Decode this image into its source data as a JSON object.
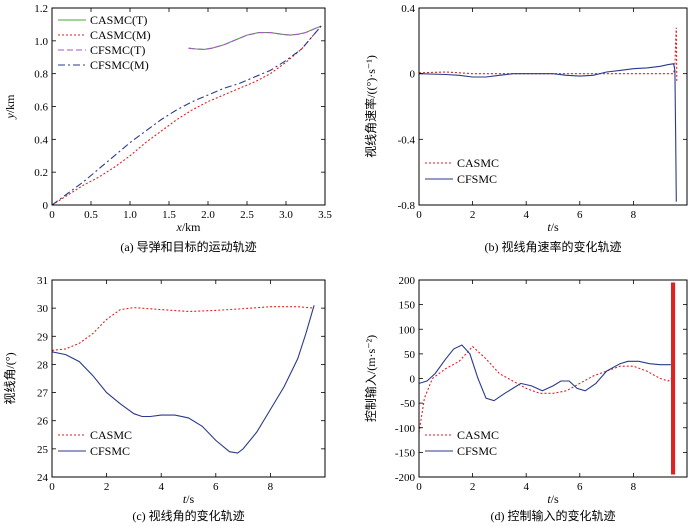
{
  "chart_data": [
    {
      "id": "a",
      "type": "line",
      "caption": "(a) 导弹和目标的运动轨迹",
      "xlabel": "x/km",
      "ylabel": "y/km",
      "xlim": [
        0,
        3.5
      ],
      "ylim": [
        0,
        1.2
      ],
      "xticks": [
        0,
        0.5,
        1.0,
        1.5,
        2.0,
        2.5,
        3.0,
        3.5
      ],
      "xtick_labels": [
        "0",
        "0.5",
        "1.0",
        "1.5",
        "2.0",
        "2.5",
        "3.0",
        "3.5"
      ],
      "yticks": [
        0,
        0.2,
        0.4,
        0.6,
        0.8,
        1.0,
        1.2
      ],
      "ytick_labels": [
        "0",
        "0.2",
        "0.4",
        "0.6",
        "0.8",
        "1.0",
        "1.2"
      ],
      "legend_position": "top-left",
      "series": [
        {
          "name": "CASMC(T)",
          "color": "#44aa33",
          "dash": "solid",
          "x": [
            1.75,
            1.85,
            1.95,
            2.05,
            2.2,
            2.35,
            2.5,
            2.65,
            2.8,
            2.95,
            3.05,
            3.15,
            3.25,
            3.35,
            3.45
          ],
          "y": [
            0.955,
            0.95,
            0.948,
            0.955,
            0.975,
            1.005,
            1.035,
            1.05,
            1.05,
            1.04,
            1.035,
            1.04,
            1.05,
            1.07,
            1.09
          ]
        },
        {
          "name": "CASMC(M)",
          "color": "#dd2222",
          "dash": "dotted",
          "x": [
            0.0,
            0.2,
            0.4,
            0.6,
            0.8,
            1.0,
            1.2,
            1.4,
            1.6,
            1.8,
            2.0,
            2.2,
            2.4,
            2.6,
            2.8,
            3.0,
            3.2,
            3.45
          ],
          "y": [
            0.0,
            0.06,
            0.12,
            0.17,
            0.23,
            0.3,
            0.38,
            0.45,
            0.52,
            0.58,
            0.63,
            0.67,
            0.71,
            0.75,
            0.8,
            0.87,
            0.95,
            1.09
          ]
        },
        {
          "name": "CFSMC(T)",
          "color": "#aa55cc",
          "dash": "dashed",
          "x": [
            1.75,
            1.85,
            1.95,
            2.05,
            2.2,
            2.35,
            2.5,
            2.65,
            2.8,
            2.95,
            3.05,
            3.15,
            3.25,
            3.35,
            3.45
          ],
          "y": [
            0.955,
            0.95,
            0.948,
            0.955,
            0.975,
            1.005,
            1.035,
            1.05,
            1.05,
            1.04,
            1.035,
            1.04,
            1.05,
            1.07,
            1.09
          ]
        },
        {
          "name": "CFSMC(M)",
          "color": "#2a3a8a",
          "dash": "dashdot",
          "x": [
            0.0,
            0.2,
            0.4,
            0.6,
            0.8,
            1.0,
            1.2,
            1.4,
            1.6,
            1.8,
            2.0,
            2.2,
            2.4,
            2.6,
            2.8,
            3.0,
            3.2,
            3.45
          ],
          "y": [
            0.0,
            0.07,
            0.14,
            0.22,
            0.3,
            0.38,
            0.45,
            0.52,
            0.58,
            0.63,
            0.67,
            0.71,
            0.74,
            0.78,
            0.82,
            0.88,
            0.95,
            1.09
          ]
        }
      ]
    },
    {
      "id": "b",
      "type": "line",
      "caption": "(b) 视线角速率的变化轨迹",
      "xlabel": "t/s",
      "ylabel": "视线角速率/((°)·s⁻¹)",
      "xlim": [
        0,
        10
      ],
      "ylim": [
        -0.8,
        0.4
      ],
      "xticks": [
        0,
        2,
        4,
        6,
        8
      ],
      "xtick_labels": [
        "0",
        "2",
        "4",
        "6",
        "8"
      ],
      "yticks": [
        -0.8,
        -0.4,
        0,
        0.4
      ],
      "ytick_labels": [
        "-0.8",
        "-0.4",
        "0",
        "0.4"
      ],
      "legend_position": "bottom-left",
      "series": [
        {
          "name": "CASMC",
          "color": "#dd2222",
          "dash": "dotted",
          "x": [
            0,
            1,
            2,
            3,
            4,
            5,
            6,
            7,
            8,
            9,
            9.5,
            9.55,
            9.58,
            9.6,
            9.62
          ],
          "y": [
            0.005,
            0.01,
            0.0,
            0.0,
            0.0,
            0.0,
            0.0,
            0.0,
            0.0,
            0.0,
            0.0,
            0.05,
            0.2,
            0.28,
            -0.05
          ]
        },
        {
          "name": "CFSMC",
          "color": "#2a3a8a",
          "dash": "solid",
          "x": [
            0,
            1,
            1.5,
            2,
            2.5,
            3,
            3.5,
            4,
            5,
            5.5,
            6,
            6.5,
            7,
            7.5,
            8,
            8.5,
            9,
            9.3,
            9.5,
            9.55,
            9.58,
            9.6
          ],
          "y": [
            0.0,
            -0.005,
            -0.01,
            -0.02,
            -0.02,
            -0.01,
            0.0,
            0.0,
            0.0,
            -0.01,
            -0.015,
            -0.01,
            0.01,
            0.02,
            0.03,
            0.035,
            0.045,
            0.055,
            0.06,
            0.02,
            -0.4,
            -0.78
          ]
        }
      ]
    },
    {
      "id": "c",
      "type": "line",
      "caption": "(c) 视线角的变化轨迹",
      "xlabel": "t/s",
      "ylabel": "视线角/(°)",
      "xlim": [
        0,
        10
      ],
      "ylim": [
        24,
        31
      ],
      "xticks": [
        0,
        2,
        4,
        6,
        8
      ],
      "xtick_labels": [
        "0",
        "2",
        "4",
        "6",
        "8"
      ],
      "yticks": [
        24,
        25,
        26,
        27,
        28,
        29,
        30,
        31
      ],
      "ytick_labels": [
        "24",
        "25",
        "26",
        "27",
        "28",
        "29",
        "30",
        "31"
      ],
      "legend_position": "bottom-left",
      "series": [
        {
          "name": "CASMC",
          "color": "#dd2222",
          "dash": "dotted",
          "x": [
            0,
            0.5,
            1,
            1.5,
            2,
            2.5,
            3,
            4,
            5,
            6,
            7,
            8,
            9,
            9.6
          ],
          "y": [
            28.5,
            28.55,
            28.75,
            29.1,
            29.6,
            29.95,
            30.02,
            29.95,
            29.88,
            29.92,
            29.98,
            30.05,
            30.05,
            30.0
          ]
        },
        {
          "name": "CFSMC",
          "color": "#2a3a8a",
          "dash": "solid",
          "x": [
            0,
            0.5,
            1,
            1.5,
            2,
            2.5,
            3,
            3.3,
            3.6,
            4,
            4.5,
            5,
            5.5,
            6,
            6.5,
            6.8,
            7,
            7.5,
            8,
            8.5,
            9,
            9.3,
            9.6
          ],
          "y": [
            28.45,
            28.35,
            28.1,
            27.6,
            27.0,
            26.6,
            26.25,
            26.15,
            26.15,
            26.2,
            26.2,
            26.1,
            25.8,
            25.3,
            24.9,
            24.85,
            25.0,
            25.6,
            26.4,
            27.2,
            28.2,
            29.1,
            30.1
          ]
        }
      ]
    },
    {
      "id": "d",
      "type": "line",
      "caption": "(d) 控制输入的变化轨迹",
      "xlabel": "t/s",
      "ylabel": "控制输入/(m·s⁻²)",
      "xlim": [
        0,
        10
      ],
      "ylim": [
        -200,
        200
      ],
      "xticks": [
        0,
        2,
        4,
        6,
        8
      ],
      "xtick_labels": [
        "0",
        "2",
        "4",
        "6",
        "8"
      ],
      "yticks": [
        -200,
        -150,
        -100,
        -50,
        0,
        50,
        100,
        150,
        200
      ],
      "ytick_labels": [
        "-200",
        "-150",
        "-100",
        "-50",
        "0",
        "50",
        "100",
        "150",
        "200"
      ],
      "legend_position": "bottom-left",
      "series": [
        {
          "name": "CASMC",
          "color": "#dd2222",
          "dash": "dotted",
          "x": [
            0,
            0.2,
            0.5,
            1,
            1.5,
            2,
            2.5,
            3,
            3.5,
            4,
            4.5,
            5,
            5.5,
            6,
            6.5,
            7,
            7.5,
            8,
            8.5,
            9,
            9.3,
            9.4
          ],
          "y": [
            -110,
            -40,
            0,
            20,
            35,
            65,
            40,
            10,
            -5,
            -20,
            -30,
            -30,
            -25,
            -10,
            5,
            15,
            25,
            25,
            15,
            0,
            -5,
            0
          ]
        },
        {
          "name": "CFSMC",
          "color": "#2a3a8a",
          "dash": "solid",
          "x": [
            0,
            0.3,
            0.6,
            1,
            1.3,
            1.6,
            1.9,
            2.2,
            2.5,
            2.8,
            3.2,
            3.5,
            3.8,
            4.2,
            4.6,
            5.0,
            5.3,
            5.6,
            5.9,
            6.2,
            6.6,
            7,
            7.5,
            7.8,
            8.2,
            8.6,
            9,
            9.4
          ],
          "y": [
            -10,
            -5,
            10,
            40,
            60,
            68,
            50,
            0,
            -40,
            -45,
            -30,
            -20,
            -10,
            -15,
            -25,
            -15,
            -5,
            -5,
            -20,
            -25,
            -10,
            15,
            30,
            35,
            35,
            30,
            28,
            28
          ]
        }
      ]
    }
  ]
}
